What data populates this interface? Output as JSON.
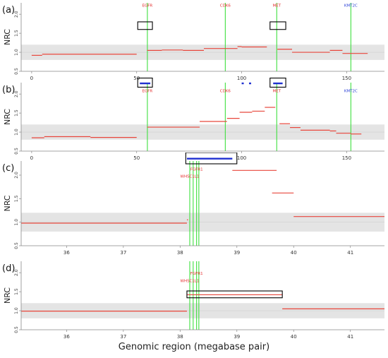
{
  "figure": {
    "xlabel": "Genomic region (megabase pair)"
  },
  "colors": {
    "segment": "#e8473c",
    "gene_line": "#3ee03e",
    "gene_label_red": "#e53030",
    "gene_label_blue": "#2a3fd6",
    "highlight_bar": "#1f2fd0",
    "normal_band": "#e4e4e4",
    "box": "#000000",
    "axis": "#888888"
  },
  "chart_data": [
    {
      "type": "line",
      "panel_label": "(a)",
      "ylabel": "NRC",
      "xlim": [
        -5,
        168
      ],
      "ylim": [
        0.5,
        2.3
      ],
      "xticks": [
        0,
        50,
        100,
        150
      ],
      "yticks": [
        0.5,
        1.0,
        1.5,
        2.0
      ],
      "normal_band": [
        0.8,
        1.2
      ],
      "genes": [
        {
          "name": "EGFR",
          "x": 55.1,
          "label_y": 2.2,
          "color": "red"
        },
        {
          "name": "CDK6",
          "x": 92.2,
          "label_y": 2.2,
          "color": "red"
        },
        {
          "name": "MET",
          "x": 116.7,
          "label_y": 2.2,
          "color": "red"
        },
        {
          "name": "KMT2C",
          "x": 152.0,
          "label_y": 2.2,
          "color": "blue"
        }
      ],
      "segments": [
        {
          "x0": 0,
          "x1": 5,
          "y": 0.92
        },
        {
          "x0": 5,
          "x1": 50,
          "y": 0.95
        },
        {
          "x0": 55,
          "x1": 62,
          "y": 1.05
        },
        {
          "x0": 62,
          "x1": 72,
          "y": 1.06
        },
        {
          "x0": 72,
          "x1": 82,
          "y": 1.05
        },
        {
          "x0": 82,
          "x1": 98,
          "y": 1.1
        },
        {
          "x0": 98,
          "x1": 100,
          "y": 1.15
        },
        {
          "x0": 100,
          "x1": 112,
          "y": 1.14
        },
        {
          "x0": 117,
          "x1": 124,
          "y": 1.08
        },
        {
          "x0": 124,
          "x1": 142,
          "y": 1.0
        },
        {
          "x0": 142,
          "x1": 148,
          "y": 1.05
        },
        {
          "x0": 148,
          "x1": 160,
          "y": 0.97
        }
      ],
      "highlight_segments": [],
      "boxes": [
        {
          "x0": 50.5,
          "x1": 57.5,
          "y0": 1.6,
          "y1": 1.8
        },
        {
          "x0": 113.5,
          "x1": 121,
          "y0": 1.6,
          "y1": 1.8
        }
      ]
    },
    {
      "type": "line",
      "panel_label": "(b)",
      "ylabel": "NRC",
      "xlim": [
        -5,
        168
      ],
      "ylim": [
        0.5,
        2.3
      ],
      "xticks": [
        0,
        50,
        100,
        150
      ],
      "yticks": [
        0.5,
        1.0,
        1.5,
        2.0
      ],
      "normal_band": [
        0.8,
        1.2
      ],
      "genes": [
        {
          "name": "EGFR",
          "x": 55.1,
          "label_y": 2.05,
          "color": "red"
        },
        {
          "name": "CDK6",
          "x": 92.2,
          "label_y": 2.05,
          "color": "red"
        },
        {
          "name": "MET",
          "x": 116.7,
          "label_y": 2.05,
          "color": "red"
        },
        {
          "name": "KMT2C",
          "x": 152.0,
          "label_y": 2.05,
          "color": "blue"
        }
      ],
      "segments": [
        {
          "x0": 0,
          "x1": 6,
          "y": 0.85
        },
        {
          "x0": 6,
          "x1": 28,
          "y": 0.88
        },
        {
          "x0": 28,
          "x1": 50,
          "y": 0.86
        },
        {
          "x0": 55,
          "x1": 80,
          "y": 1.13
        },
        {
          "x0": 80,
          "x1": 93,
          "y": 1.28
        },
        {
          "x0": 93,
          "x1": 99,
          "y": 1.36
        },
        {
          "x0": 99,
          "x1": 105,
          "y": 1.52
        },
        {
          "x0": 105,
          "x1": 111,
          "y": 1.55
        },
        {
          "x0": 111,
          "x1": 116,
          "y": 1.65
        },
        {
          "x0": 118,
          "x1": 123,
          "y": 1.22
        },
        {
          "x0": 123,
          "x1": 128,
          "y": 1.12
        },
        {
          "x0": 128,
          "x1": 142,
          "y": 1.05
        },
        {
          "x0": 142,
          "x1": 145,
          "y": 1.03
        },
        {
          "x0": 145,
          "x1": 152,
          "y": 0.97
        },
        {
          "x0": 152,
          "x1": 157,
          "y": 0.95
        }
      ],
      "highlight_segments": [
        {
          "x0": 51.5,
          "x1": 56.5,
          "y": 2.28
        },
        {
          "x0": 115,
          "x1": 119.5,
          "y": 2.28
        },
        {
          "x0": 100,
          "x1": 101,
          "y": 2.28
        },
        {
          "x0": 103.5,
          "x1": 104.5,
          "y": 2.28
        }
      ],
      "boxes": [
        {
          "x0": 50.5,
          "x1": 57.5,
          "y0": 2.18,
          "y1": 2.42
        },
        {
          "x0": 113.5,
          "x1": 121,
          "y0": 2.18,
          "y1": 2.42
        }
      ]
    },
    {
      "type": "line",
      "panel_label": "(c)",
      "ylabel": "NRC",
      "xlim": [
        35.2,
        41.6
      ],
      "ylim": [
        0.5,
        2.3
      ],
      "xticks": [
        36,
        37,
        38,
        39,
        40,
        41
      ],
      "yticks": [
        0.5,
        1.0,
        1.5,
        2.0
      ],
      "normal_band": [
        0.8,
        1.2
      ],
      "genes": [
        {
          "name": "WHSC1L1",
          "x": 38.17,
          "label_y": 1.95,
          "color": "red"
        },
        {
          "name": "FGFR1",
          "x": 38.29,
          "label_y": 2.1,
          "color": "red"
        },
        {
          "name": "",
          "x": 38.23,
          "label_y": 0,
          "color": "red"
        },
        {
          "name": "",
          "x": 38.33,
          "label_y": 0,
          "color": "red"
        }
      ],
      "segments": [
        {
          "x0": 35.2,
          "x1": 38.12,
          "y": 0.98
        },
        {
          "x0": 38.12,
          "x1": 38.14,
          "y": 1.05
        },
        {
          "x0": 38.92,
          "x1": 39.7,
          "y": 2.1
        },
        {
          "x0": 39.62,
          "x1": 40.0,
          "y": 1.62
        },
        {
          "x0": 40.0,
          "x1": 41.6,
          "y": 1.12
        }
      ],
      "highlight_segments": [
        {
          "x0": 38.12,
          "x1": 38.92,
          "y": 2.35
        }
      ],
      "boxes": [
        {
          "x0": 38.1,
          "x1": 39.0,
          "y0": 2.24,
          "y1": 2.48
        }
      ]
    },
    {
      "type": "line",
      "panel_label": "(d)",
      "ylabel": "NRC",
      "xlim": [
        35.2,
        41.6
      ],
      "ylim": [
        0.5,
        2.3
      ],
      "xticks": [
        36,
        37,
        38,
        39,
        40,
        41
      ],
      "yticks": [
        0.5,
        1.0,
        1.5,
        2.0
      ],
      "normal_band": [
        0.8,
        1.2
      ],
      "genes": [
        {
          "name": "WHSC1L1",
          "x": 38.17,
          "label_y": 1.75,
          "color": "red"
        },
        {
          "name": "FGFR1",
          "x": 38.29,
          "label_y": 1.95,
          "color": "red"
        },
        {
          "name": "",
          "x": 38.23,
          "label_y": 0,
          "color": "red"
        },
        {
          "name": "",
          "x": 38.33,
          "label_y": 0,
          "color": "red"
        }
      ],
      "segments": [
        {
          "x0": 35.2,
          "x1": 38.12,
          "y": 0.99
        },
        {
          "x0": 38.12,
          "x1": 39.8,
          "y": 1.42
        },
        {
          "x0": 39.8,
          "x1": 41.6,
          "y": 1.05
        }
      ],
      "highlight_segments": [],
      "boxes": [
        {
          "x0": 38.12,
          "x1": 39.8,
          "y0": 1.34,
          "y1": 1.52
        }
      ]
    }
  ]
}
